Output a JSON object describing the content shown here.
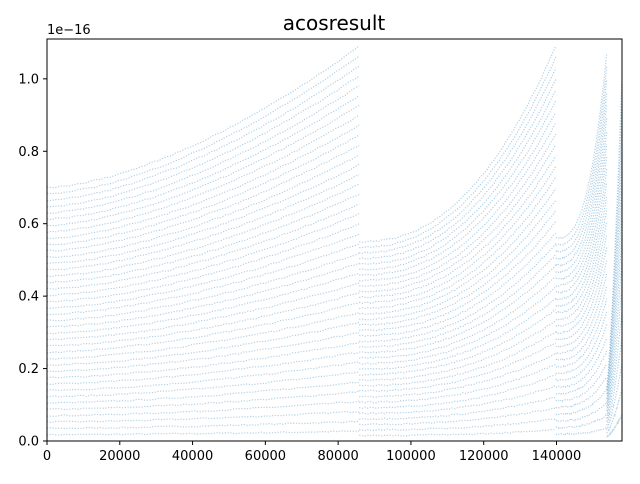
{
  "chart_data": {
    "type": "scatter",
    "title": "acosresult",
    "xlabel": "",
    "ylabel": "",
    "xlim": [
      0,
      158000
    ],
    "ylim": [
      0,
      1.11e-16
    ],
    "y_scale_label": "1e−16",
    "x_ticks": [
      0,
      20000,
      40000,
      60000,
      80000,
      100000,
      120000,
      140000
    ],
    "x_tick_labels": [
      "0",
      "20000",
      "40000",
      "60000",
      "80000",
      "100000",
      "120000",
      "140000"
    ],
    "y_ticks": [
      0,
      2e-17,
      4e-17,
      6e-17,
      8e-17,
      1e-16
    ],
    "y_tick_labels": [
      "0.0",
      "0.2",
      "0.4",
      "0.6",
      "0.8",
      "1.0"
    ],
    "grid": false,
    "legend": "none",
    "marker_color": "#1f77b4",
    "segments": [
      {
        "x_start": 0,
        "x_end": 85800,
        "y_max_start": 7e-17,
        "y_max_end": 1.09e-16,
        "curve_shape": 1.6,
        "bands": 40
      },
      {
        "x_start": 85800,
        "x_end": 139800,
        "y_max_start": 5.5e-17,
        "y_max_end": 1.09e-16,
        "curve_shape": 2.3,
        "bands": 36
      },
      {
        "x_start": 139800,
        "x_end": 153800,
        "y_max_start": 5.6e-17,
        "y_max_end": 1.07e-16,
        "curve_shape": 2.8,
        "bands": 30
      },
      {
        "x_start": 153800,
        "x_end": 158000,
        "y_max_start": 1.5e-17,
        "y_max_end": 1e-16,
        "curve_shape": 1.3,
        "bands": 14
      }
    ]
  }
}
